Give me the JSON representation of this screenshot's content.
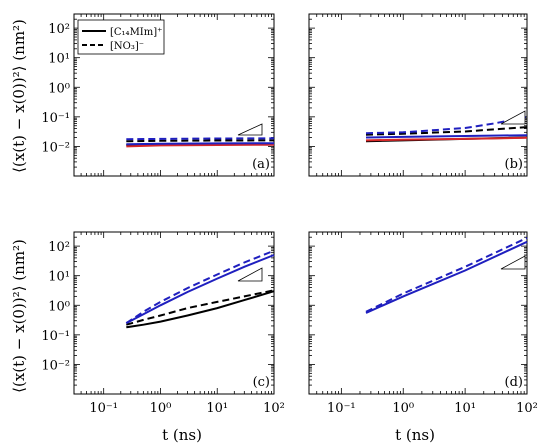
{
  "figure": {
    "ylabel": "⟨(x(t) − x(0))²⟩ (nm²)",
    "xlabel": "t (ns)"
  },
  "chart_data": [
    {
      "type": "line",
      "panel_label": "(a)",
      "xscale": "log",
      "yscale": "log",
      "xlim": [
        0.03,
        100
      ],
      "ylim": [
        0.001,
        300
      ],
      "x_ticks": [
        "10⁻¹",
        "10⁰",
        "10¹",
        "10²"
      ],
      "y_ticks": [
        "10⁻²",
        "10⁻¹",
        "10⁰",
        "10¹",
        "10²"
      ],
      "legend": {
        "placement": "top-left",
        "entries": [
          {
            "label": "[C₁₄MIm]⁺",
            "style": "solid"
          },
          {
            "label": "[NO₃]⁻",
            "style": "dashed"
          }
        ]
      },
      "slope_triangle": true,
      "series": [
        {
          "color": "#000000",
          "style": "solid",
          "x": [
            0.25,
            1,
            10,
            100
          ],
          "y": [
            0.0112,
            0.0118,
            0.0121,
            0.0122
          ]
        },
        {
          "color": "#d62728",
          "style": "solid",
          "x": [
            0.25,
            1,
            10,
            100
          ],
          "y": [
            0.01,
            0.0108,
            0.0112,
            0.0114
          ]
        },
        {
          "color": "#1f1fbf",
          "style": "solid",
          "x": [
            0.25,
            1,
            10,
            100
          ],
          "y": [
            0.0118,
            0.0124,
            0.0127,
            0.0129
          ]
        },
        {
          "color": "#000000",
          "style": "dashed",
          "x": [
            0.25,
            1,
            10,
            100
          ],
          "y": [
            0.015,
            0.0155,
            0.0158,
            0.016
          ]
        },
        {
          "color": "#1f1fbf",
          "style": "dashed",
          "x": [
            0.25,
            1,
            10,
            100
          ],
          "y": [
            0.0175,
            0.018,
            0.0185,
            0.0188
          ]
        }
      ]
    },
    {
      "type": "line",
      "panel_label": "(b)",
      "xscale": "log",
      "yscale": "log",
      "xlim": [
        0.03,
        100
      ],
      "ylim": [
        0.001,
        300
      ],
      "x_ticks": [
        "10⁻¹",
        "10⁰",
        "10¹",
        "10²"
      ],
      "y_ticks": [
        "10⁻²",
        "10⁻¹",
        "10⁰",
        "10¹",
        "10²"
      ],
      "slope_triangle": true,
      "series": [
        {
          "color": "#000000",
          "style": "solid",
          "x": [
            0.25,
            1,
            10,
            100
          ],
          "y": [
            0.015,
            0.016,
            0.018,
            0.02
          ]
        },
        {
          "color": "#d62728",
          "style": "solid",
          "x": [
            0.25,
            1,
            10,
            100
          ],
          "y": [
            0.016,
            0.017,
            0.018,
            0.0195
          ]
        },
        {
          "color": "#1f1fbf",
          "style": "solid",
          "x": [
            0.25,
            1,
            10,
            100
          ],
          "y": [
            0.02,
            0.021,
            0.0225,
            0.024
          ]
        },
        {
          "color": "#000000",
          "style": "dashed",
          "x": [
            0.25,
            1,
            10,
            30,
            100
          ],
          "y": [
            0.025,
            0.027,
            0.032,
            0.038,
            0.045
          ]
        },
        {
          "color": "#1f1fbf",
          "style": "dashed",
          "x": [
            0.25,
            1,
            10,
            30,
            100
          ],
          "y": [
            0.028,
            0.03,
            0.042,
            0.06,
            0.1
          ]
        }
      ]
    },
    {
      "type": "line",
      "panel_label": "(c)",
      "xscale": "log",
      "yscale": "log",
      "xlim": [
        0.03,
        100
      ],
      "ylim": [
        0.001,
        300
      ],
      "x_ticks": [
        "10⁻¹",
        "10⁰",
        "10¹",
        "10²"
      ],
      "y_ticks": [
        "10⁻²",
        "10⁻¹",
        "10⁰",
        "10¹",
        "10²"
      ],
      "slope_triangle": true,
      "series": [
        {
          "color": "#000000",
          "style": "solid",
          "x": [
            0.25,
            0.5,
            1,
            3,
            10,
            30,
            100
          ],
          "y": [
            0.18,
            0.22,
            0.28,
            0.45,
            0.8,
            1.5,
            3.0
          ]
        },
        {
          "color": "#000000",
          "style": "dashed",
          "x": [
            0.25,
            0.5,
            1,
            3,
            10,
            30,
            100
          ],
          "y": [
            0.22,
            0.32,
            0.45,
            0.8,
            1.3,
            2.0,
            3.2
          ]
        },
        {
          "color": "#1f1fbf",
          "style": "solid",
          "x": [
            0.25,
            0.5,
            1,
            3,
            10,
            30,
            100
          ],
          "y": [
            0.25,
            0.5,
            1.0,
            2.8,
            8.0,
            20.0,
            50.0
          ]
        },
        {
          "color": "#1f1fbf",
          "style": "dashed",
          "x": [
            0.25,
            0.5,
            1,
            3,
            10,
            30,
            100
          ],
          "y": [
            0.25,
            0.6,
            1.3,
            3.8,
            11.0,
            28.0,
            70.0
          ]
        }
      ]
    },
    {
      "type": "line",
      "panel_label": "(d)",
      "xscale": "log",
      "yscale": "log",
      "xlim": [
        0.03,
        100
      ],
      "ylim": [
        0.001,
        300
      ],
      "x_ticks": [
        "10⁻¹",
        "10⁰",
        "10¹",
        "10²"
      ],
      "y_ticks": [
        "10⁻²",
        "10⁻¹",
        "10⁰",
        "10¹",
        "10²"
      ],
      "slope_triangle": true,
      "series": [
        {
          "color": "#1f1fbf",
          "style": "solid",
          "x": [
            0.25,
            1,
            10,
            100
          ],
          "y": [
            0.55,
            2.0,
            15.0,
            140.0
          ]
        },
        {
          "color": "#1f1fbf",
          "style": "dashed",
          "x": [
            0.25,
            1,
            10,
            100
          ],
          "y": [
            0.6,
            2.5,
            20.0,
            190.0
          ]
        }
      ]
    }
  ]
}
